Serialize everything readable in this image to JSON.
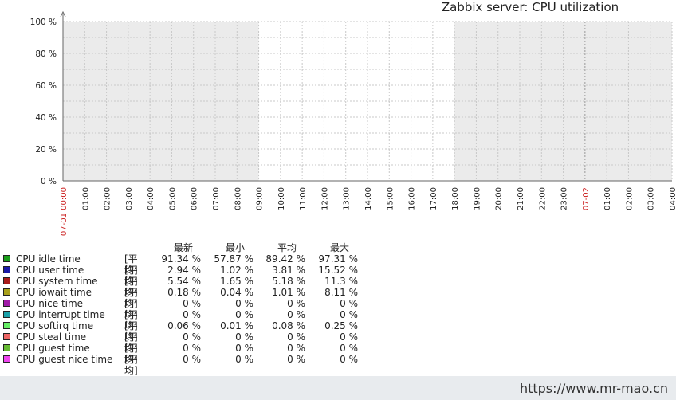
{
  "chart_data": {
    "type": "line",
    "title": "Zabbix server: CPU utilization",
    "y_ticks": [
      "100 %",
      "80 %",
      "60 %",
      "40 %",
      "20 %",
      "0 %"
    ],
    "ylim": [
      0,
      100
    ],
    "x_ticks": [
      {
        "label": "07-01 00:00",
        "highlight": true
      },
      {
        "label": "01:00"
      },
      {
        "label": "02:00"
      },
      {
        "label": "03:00"
      },
      {
        "label": "04:00"
      },
      {
        "label": "05:00"
      },
      {
        "label": "06:00"
      },
      {
        "label": "07:00"
      },
      {
        "label": "08:00"
      },
      {
        "label": "09:00"
      },
      {
        "label": "10:00"
      },
      {
        "label": "11:00"
      },
      {
        "label": "12:00"
      },
      {
        "label": "13:00"
      },
      {
        "label": "14:00"
      },
      {
        "label": "15:00"
      },
      {
        "label": "16:00"
      },
      {
        "label": "17:00"
      },
      {
        "label": "18:00"
      },
      {
        "label": "19:00"
      },
      {
        "label": "20:00"
      },
      {
        "label": "21:00"
      },
      {
        "label": "22:00"
      },
      {
        "label": "23:00"
      },
      {
        "label": "07-02",
        "highlight": true
      },
      {
        "label": "01:00"
      },
      {
        "label": "02:00"
      },
      {
        "label": "03:00"
      },
      {
        "label": "04:00"
      }
    ],
    "shaded_periods": [
      [
        "00:00",
        "09:00"
      ],
      [
        "18:00",
        "04:00"
      ]
    ],
    "shade_color": "#ebebeb",
    "highlight_color": "#cc2222",
    "grid": true,
    "legend_headers": [
      "最新",
      "最小",
      "平均",
      "最大"
    ],
    "legend": [
      {
        "name": "CPU idle time",
        "color": "#1a9e1a",
        "func": "[平均]",
        "last": "91.34 %",
        "min": "57.87 %",
        "avg": "89.42 %",
        "max": "97.31 %"
      },
      {
        "name": "CPU user time",
        "color": "#1a1aa8",
        "func": "[平均]",
        "last": "2.94 %",
        "min": "1.02 %",
        "avg": "3.81 %",
        "max": "15.52 %"
      },
      {
        "name": "CPU system time",
        "color": "#a81a1a",
        "func": "[平均]",
        "last": "5.54 %",
        "min": "1.65 %",
        "avg": "5.18 %",
        "max": "11.3 %"
      },
      {
        "name": "CPU iowait time",
        "color": "#a8a01a",
        "func": "[平均]",
        "last": "0.18 %",
        "min": "0.04 %",
        "avg": "1.01 %",
        "max": "8.11 %"
      },
      {
        "name": "CPU nice time",
        "color": "#a01aa8",
        "func": "[平均]",
        "last": "0 %",
        "min": "0 %",
        "avg": "0 %",
        "max": "0 %"
      },
      {
        "name": "CPU interrupt time",
        "color": "#1aa0a8",
        "func": "[平均]",
        "last": "0 %",
        "min": "0 %",
        "avg": "0 %",
        "max": "0 %"
      },
      {
        "name": "CPU softirq time",
        "color": "#66ee66",
        "func": "[平均]",
        "last": "0.06 %",
        "min": "0.01 %",
        "avg": "0.08 %",
        "max": "0.25 %"
      },
      {
        "name": "CPU steal time",
        "color": "#ee6666",
        "func": "[平均]",
        "last": "0 %",
        "min": "0 %",
        "avg": "0 %",
        "max": "0 %"
      },
      {
        "name": "CPU guest time",
        "color": "#66bb33",
        "func": "[平均]",
        "last": "0 %",
        "min": "0 %",
        "avg": "0 %",
        "max": "0 %"
      },
      {
        "name": "CPU guest nice time",
        "color": "#ee44ee",
        "func": "[平均]",
        "last": "0 %",
        "min": "0 %",
        "avg": "0 %",
        "max": "0 %"
      }
    ]
  },
  "footer": {
    "url": "https://www.mr-mao.cn"
  }
}
